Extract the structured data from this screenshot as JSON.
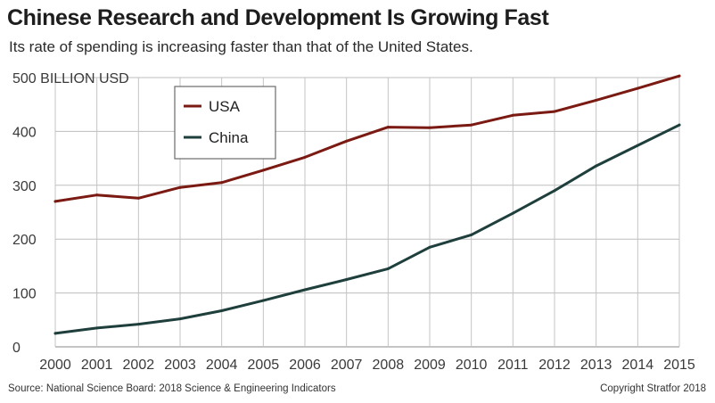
{
  "title": "Chinese Research and Development Is Growing Fast",
  "subtitle": "Its rate of spending is increasing faster than that of the United States.",
  "footer": {
    "source": "Source: National Science Board: 2018 Science & Engineering Indicators",
    "copyright": "Copyright Stratfor 2018"
  },
  "chart_data": {
    "type": "line",
    "title": "Chinese Research and Development Is Growing Fast",
    "subtitle": "Its rate of spending is increasing faster than that of the United States.",
    "ylabel": "BILLION USD",
    "xlabel": "",
    "x": [
      "2000",
      "2001",
      "2002",
      "2003",
      "2004",
      "2005",
      "2006",
      "2007",
      "2008",
      "2009",
      "2010",
      "2011",
      "2012",
      "2013",
      "2014",
      "2015"
    ],
    "ylim": [
      0,
      500
    ],
    "y_ticks": [
      0,
      100,
      200,
      300,
      400,
      500
    ],
    "y_tick_labels": [
      "0",
      "100",
      "200",
      "300",
      "400",
      "500 BILLION USD"
    ],
    "grid": true,
    "legend_position": "top-left",
    "series": [
      {
        "name": "USA",
        "color": "#7a1a12",
        "values": [
          270,
          282,
          276,
          296,
          305,
          328,
          352,
          382,
          408,
          407,
          412,
          430,
          437,
          458,
          480,
          503
        ]
      },
      {
        "name": "China",
        "color": "#1e3f3c",
        "values": [
          25,
          35,
          42,
          52,
          67,
          86,
          106,
          125,
          145,
          185,
          208,
          248,
          290,
          336,
          374,
          412
        ]
      }
    ]
  }
}
